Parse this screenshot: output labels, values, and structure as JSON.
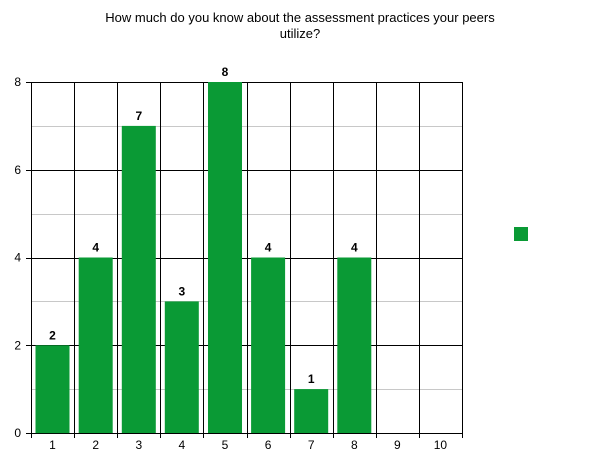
{
  "chart_data": {
    "type": "bar",
    "title_lines": [
      "How much do you know about the assessment practices your peers",
      "utilize?"
    ],
    "categories": [
      "1",
      "2",
      "3",
      "4",
      "5",
      "6",
      "7",
      "8",
      "9",
      "10"
    ],
    "series": [
      {
        "values": [
          2,
          4,
          7,
          3,
          8,
          4,
          1,
          4,
          0,
          0
        ],
        "color": "#0a9a35"
      }
    ],
    "data_labels": [
      "2",
      "4",
      "7",
      "3",
      "8",
      "4",
      "1",
      "4",
      "",
      ""
    ],
    "y_ticks": [
      0,
      2,
      4,
      6,
      8
    ],
    "ylim": [
      0,
      8
    ],
    "y_minor_step": 1,
    "grid": true,
    "legend": {
      "position": "right",
      "show_swatch_only": true
    }
  }
}
